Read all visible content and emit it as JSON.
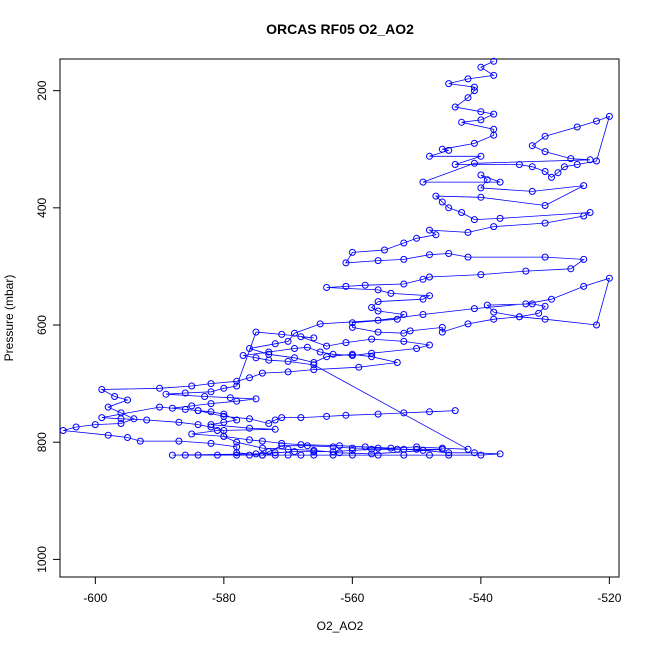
{
  "chart_data": {
    "type": "line",
    "title": "ORCAS RF05 O2_AO2",
    "xlabel": "O2_AO2",
    "ylabel": "Pressure (mbar)",
    "xlim": [
      -605.5,
      -518.5
    ],
    "ylim": [
      1030,
      146
    ],
    "y_reversed": true,
    "x_ticks": [
      -600,
      -580,
      -560,
      -540,
      -520
    ],
    "y_ticks": [
      200,
      400,
      600,
      800,
      1000
    ],
    "grid": false,
    "legend": "none",
    "marker": "open-circle",
    "color": "#0000ff",
    "series": [
      {
        "points": [
          [
            -538,
            150
          ],
          [
            -540,
            160
          ],
          [
            -538,
            174
          ],
          [
            -542,
            180
          ],
          [
            -545,
            188
          ],
          [
            -541,
            194
          ],
          [
            -541,
            200
          ],
          [
            -542,
            212
          ],
          [
            -544,
            228
          ],
          [
            -540,
            236
          ],
          [
            -538,
            240
          ],
          [
            -540,
            250
          ],
          [
            -543,
            254
          ],
          [
            -538,
            266
          ],
          [
            -538,
            276
          ],
          [
            -541,
            290
          ],
          [
            -546,
            300
          ],
          [
            -545,
            302
          ],
          [
            -548,
            312
          ],
          [
            -540,
            312
          ],
          [
            -544,
            326
          ],
          [
            -534,
            326
          ],
          [
            -532,
            330
          ],
          [
            -530,
            338
          ],
          [
            -529,
            348
          ],
          [
            -528,
            340
          ],
          [
            -527,
            330
          ],
          [
            -525,
            326
          ],
          [
            -522,
            320
          ],
          [
            -520,
            244
          ],
          [
            -522,
            252
          ],
          [
            -525,
            262
          ],
          [
            -530,
            278
          ],
          [
            -532,
            294
          ],
          [
            -530,
            304
          ],
          [
            -526,
            316
          ],
          [
            -523,
            318
          ],
          [
            -541,
            324
          ],
          [
            -549,
            356
          ],
          [
            -537,
            356
          ],
          [
            -540,
            344
          ],
          [
            -539,
            352
          ],
          [
            -540,
            366
          ],
          [
            -532,
            372
          ],
          [
            -524,
            362
          ],
          [
            -530,
            396
          ],
          [
            -540,
            382
          ],
          [
            -547,
            380
          ],
          [
            -546,
            390
          ],
          [
            -545,
            400
          ],
          [
            -543,
            408
          ],
          [
            -541,
            420
          ],
          [
            -537,
            418
          ],
          [
            -523,
            408
          ],
          [
            -524,
            414
          ],
          [
            -530,
            426
          ],
          [
            -538,
            432
          ],
          [
            -542,
            442
          ],
          [
            -548,
            438
          ],
          [
            -547,
            446
          ],
          [
            -550,
            452
          ],
          [
            -552,
            460
          ],
          [
            -555,
            472
          ],
          [
            -560,
            476
          ],
          [
            -561,
            494
          ],
          [
            -556,
            490
          ],
          [
            -552,
            488
          ],
          [
            -548,
            480
          ],
          [
            -545,
            478
          ],
          [
            -542,
            484
          ],
          [
            -530,
            484
          ],
          [
            -524,
            488
          ],
          [
            -526,
            504
          ],
          [
            -533,
            508
          ],
          [
            -540,
            514
          ],
          [
            -548,
            518
          ],
          [
            -549,
            522
          ],
          [
            -552,
            530
          ],
          [
            -558,
            532
          ],
          [
            -561,
            534
          ],
          [
            -564,
            536
          ],
          [
            -556,
            540
          ],
          [
            -554,
            546
          ],
          [
            -548,
            550
          ],
          [
            -549,
            556
          ],
          [
            -556,
            560
          ],
          [
            -557,
            570
          ],
          [
            -556,
            576
          ],
          [
            -552,
            582
          ],
          [
            -553,
            590
          ],
          [
            -560,
            596
          ],
          [
            -560,
            604
          ],
          [
            -556,
            612
          ],
          [
            -552,
            614
          ],
          [
            -551,
            610
          ],
          [
            -546,
            604
          ],
          [
            -546,
            612
          ],
          [
            -542,
            598
          ],
          [
            -538,
            590
          ],
          [
            -534,
            586
          ],
          [
            -531,
            580
          ],
          [
            -530,
            568
          ],
          [
            -532,
            564
          ],
          [
            -539,
            566
          ],
          [
            -538,
            578
          ],
          [
            -534,
            586
          ],
          [
            -530,
            590
          ],
          [
            -522,
            600
          ],
          [
            -520,
            520
          ],
          [
            -524,
            534
          ],
          [
            -529,
            556
          ],
          [
            -533,
            564
          ],
          [
            -541,
            572
          ],
          [
            -549,
            582
          ],
          [
            -556,
            592
          ],
          [
            -565,
            598
          ],
          [
            -569,
            614
          ],
          [
            -570,
            628
          ],
          [
            -572,
            632
          ],
          [
            -576,
            640
          ],
          [
            -573,
            650
          ],
          [
            -569,
            656
          ],
          [
            -566,
            664
          ],
          [
            -564,
            654
          ],
          [
            -560,
            650
          ],
          [
            -557,
            654
          ],
          [
            -553,
            664
          ],
          [
            -559,
            672
          ],
          [
            -566,
            676
          ],
          [
            -570,
            680
          ],
          [
            -574,
            682
          ],
          [
            -576,
            690
          ],
          [
            -578,
            696
          ],
          [
            -582,
            700
          ],
          [
            -585,
            704
          ],
          [
            -590,
            708
          ],
          [
            -599,
            710
          ],
          [
            -597,
            722
          ],
          [
            -595,
            728
          ],
          [
            -598,
            740
          ],
          [
            -596,
            750
          ],
          [
            -594,
            760
          ],
          [
            -596,
            768
          ],
          [
            -600,
            770
          ],
          [
            -603,
            774
          ],
          [
            -605,
            780
          ],
          [
            -598,
            788
          ],
          [
            -595,
            792
          ],
          [
            -593,
            798
          ],
          [
            -587,
            798
          ],
          [
            -582,
            802
          ],
          [
            -578,
            808
          ],
          [
            -578,
            818
          ],
          [
            -574,
            822
          ],
          [
            -573,
            816
          ],
          [
            -571,
            806
          ],
          [
            -567,
            806
          ],
          [
            -563,
            808
          ],
          [
            -560,
            810
          ],
          [
            -556,
            810
          ],
          [
            -552,
            812
          ],
          [
            -549,
            814
          ],
          [
            -545,
            818
          ],
          [
            -541,
            818
          ],
          [
            -537,
            820
          ],
          [
            -540,
            822
          ],
          [
            -545,
            822
          ],
          [
            -548,
            822
          ],
          [
            -552,
            822
          ],
          [
            -556,
            822
          ],
          [
            -560,
            822
          ],
          [
            -563,
            822
          ],
          [
            -566,
            822
          ],
          [
            -568,
            822
          ],
          [
            -570,
            822
          ],
          [
            -572,
            822
          ],
          [
            -574,
            822
          ],
          [
            -576,
            822
          ],
          [
            -578,
            822
          ],
          [
            -581,
            822
          ],
          [
            -584,
            822
          ],
          [
            -586,
            822
          ],
          [
            -588,
            822
          ],
          [
            -575,
            820
          ],
          [
            -572,
            818
          ],
          [
            -569,
            816
          ],
          [
            -566,
            816
          ],
          [
            -563,
            816
          ],
          [
            -560,
            814
          ],
          [
            -557,
            812
          ],
          [
            -553,
            812
          ],
          [
            -550,
            812
          ],
          [
            -546,
            812
          ],
          [
            -557,
            820
          ],
          [
            -562,
            818
          ],
          [
            -566,
            814
          ],
          [
            -570,
            812
          ],
          [
            -574,
            810
          ],
          [
            -578,
            800
          ],
          [
            -580,
            790
          ],
          [
            -580,
            780
          ],
          [
            -582,
            774
          ],
          [
            -584,
            770
          ],
          [
            -587,
            766
          ],
          [
            -592,
            762
          ],
          [
            -596,
            760
          ],
          [
            -599,
            758
          ],
          [
            -590,
            740
          ],
          [
            -586,
            744
          ],
          [
            -584,
            746
          ],
          [
            -582,
            748
          ],
          [
            -580,
            752
          ],
          [
            -578,
            762
          ],
          [
            -580,
            766
          ],
          [
            -582,
            770
          ],
          [
            -576,
            776
          ],
          [
            -572,
            778
          ],
          [
            -581,
            780
          ],
          [
            -585,
            786
          ],
          [
            -580,
            790
          ],
          [
            -576,
            796
          ],
          [
            -574,
            798
          ],
          [
            -571,
            802
          ],
          [
            -568,
            804
          ],
          [
            -562,
            806
          ],
          [
            -558,
            808
          ],
          [
            -554,
            810
          ],
          [
            -550,
            808
          ],
          [
            -546,
            810
          ],
          [
            -542,
            812
          ],
          [
            -566,
            668
          ],
          [
            -570,
            662
          ],
          [
            -573,
            660
          ],
          [
            -575,
            656
          ],
          [
            -577,
            652
          ],
          [
            -573,
            646
          ],
          [
            -569,
            640
          ],
          [
            -567,
            638
          ],
          [
            -565,
            646
          ],
          [
            -563,
            650
          ],
          [
            -560,
            652
          ],
          [
            -557,
            648
          ],
          [
            -550,
            640
          ],
          [
            -548,
            634
          ],
          [
            -552,
            628
          ],
          [
            -557,
            624
          ],
          [
            -561,
            630
          ],
          [
            -564,
            636
          ],
          [
            -568,
            620
          ],
          [
            -566,
            622
          ],
          [
            -571,
            616
          ],
          [
            -575,
            612
          ],
          [
            -578,
            704
          ],
          [
            -580,
            708
          ],
          [
            -582,
            714
          ],
          [
            -586,
            716
          ],
          [
            -589,
            718
          ],
          [
            -583,
            722
          ],
          [
            -579,
            724
          ],
          [
            -575,
            726
          ],
          [
            -578,
            730
          ],
          [
            -582,
            734
          ],
          [
            -585,
            738
          ],
          [
            -588,
            742
          ],
          [
            -584,
            746
          ],
          [
            -580,
            756
          ],
          [
            -576,
            760
          ],
          [
            -573,
            768
          ],
          [
            -572,
            762
          ],
          [
            -571,
            758
          ],
          [
            -568,
            758
          ],
          [
            -564,
            756
          ],
          [
            -561,
            754
          ],
          [
            -556,
            752
          ],
          [
            -552,
            750
          ],
          [
            -548,
            748
          ],
          [
            -544,
            746
          ]
        ]
      }
    ]
  }
}
